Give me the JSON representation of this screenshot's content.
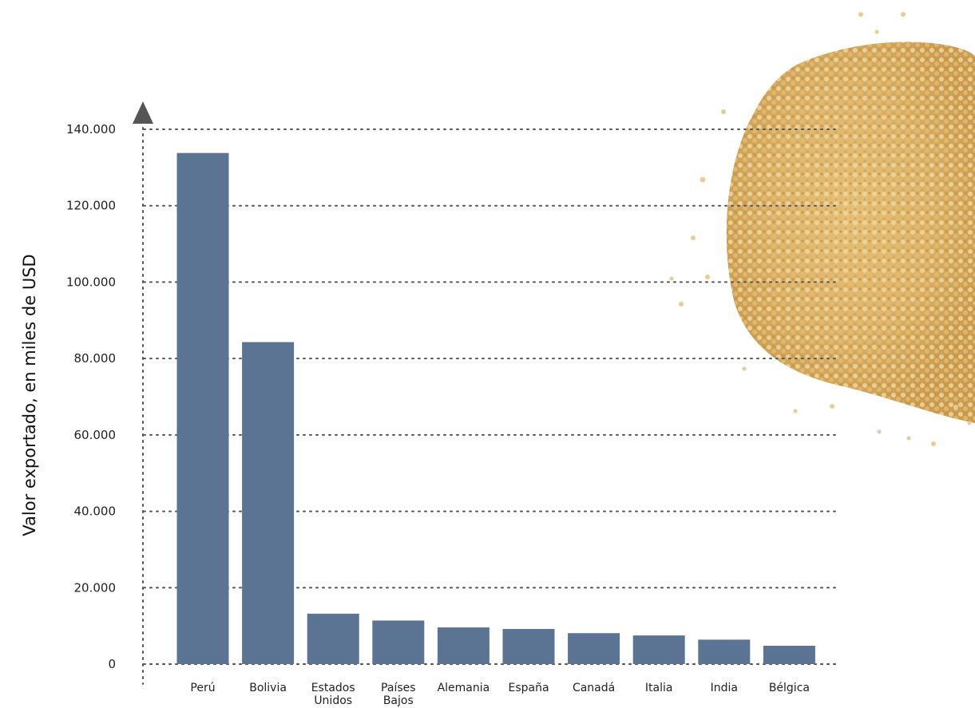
{
  "chart_data": {
    "type": "bar",
    "title": "",
    "xlabel": "",
    "ylabel": "Valor exportado, en miles de USD",
    "ylim": [
      0,
      140000
    ],
    "grid": true,
    "categories": [
      "Perú",
      "Bolivia",
      "Estados Unidos",
      "Países Bajos",
      "Alemania",
      "España",
      "Canadá",
      "Italia",
      "India",
      "Bélgica"
    ],
    "category_lines": [
      [
        "Perú"
      ],
      [
        "Bolivia"
      ],
      [
        "Estados",
        "Unidos"
      ],
      [
        "Países",
        "Bajos"
      ],
      [
        "Alemania"
      ],
      [
        "España"
      ],
      [
        "Canadá"
      ],
      [
        "Italia"
      ],
      [
        "India"
      ],
      [
        "Bélgica"
      ]
    ],
    "values": [
      133800,
      84300,
      13200,
      11400,
      9600,
      9200,
      8100,
      7500,
      6400,
      4800
    ],
    "y_ticks": [
      0,
      20000,
      40000,
      60000,
      80000,
      100000,
      120000,
      140000
    ],
    "y_tick_labels": [
      "0",
      "20.000",
      "40.000",
      "60.000",
      "80.000",
      "100.000",
      "120.000",
      "140.000"
    ],
    "colors": {
      "bar": "#5c7494",
      "grid": "#555555",
      "axis_arrow": "#555555"
    }
  },
  "decoration": {
    "image": "quinoa-grain-pile"
  }
}
